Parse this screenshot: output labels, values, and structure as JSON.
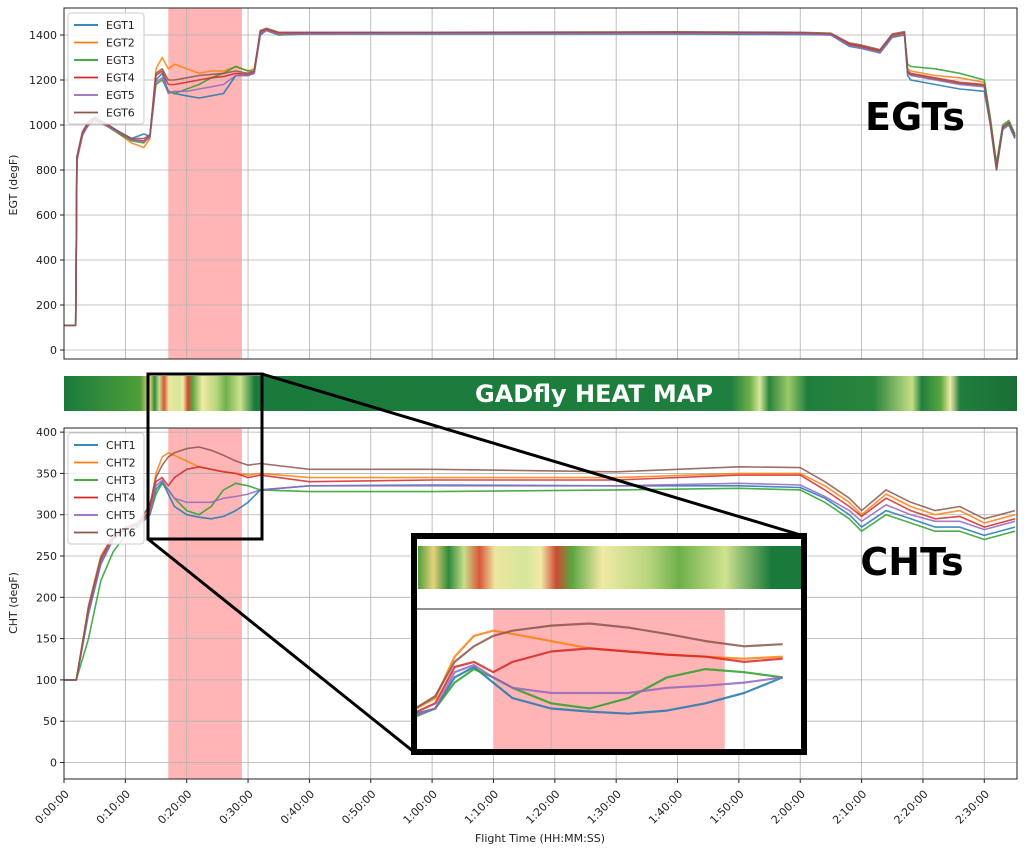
{
  "chart_data": [
    {
      "type": "line",
      "panel": "egt",
      "title": "",
      "annotation": "EGTs",
      "xlabel": "",
      "ylabel": "EGT (degF)",
      "ylim": [
        -40,
        1520
      ],
      "xlim": [
        0,
        9320
      ],
      "yticks": [
        0,
        200,
        400,
        600,
        800,
        1000,
        1200,
        1400
      ],
      "grid": true,
      "legend_position": "top-left",
      "highlight_band": [
        1020,
        1740
      ],
      "x_minutes": [
        0,
        1,
        1.9,
        2.1,
        3,
        4,
        5,
        7,
        9,
        11,
        13,
        14,
        15,
        16,
        17,
        18,
        20,
        22,
        24,
        26,
        28,
        30,
        31,
        32,
        33,
        35,
        40,
        60,
        100,
        120,
        125,
        128,
        130,
        133,
        135,
        137,
        137.5,
        138,
        142,
        146,
        150,
        151,
        152,
        153,
        154,
        155
      ],
      "series": [
        {
          "name": "EGT1",
          "color": "#1f77b4",
          "values": [
            110,
            110,
            110,
            850,
            960,
            1000,
            1020,
            1000,
            970,
            940,
            960,
            950,
            1200,
            1230,
            1150,
            1140,
            1130,
            1120,
            1130,
            1140,
            1220,
            1220,
            1230,
            1400,
            1420,
            1400,
            1405,
            1405,
            1405,
            1402,
            1400,
            1350,
            1340,
            1320,
            1390,
            1400,
            1220,
            1200,
            1180,
            1160,
            1150,
            1000,
            800,
            980,
            1000,
            940
          ]
        },
        {
          "name": "EGT2",
          "color": "#ff7f0e",
          "values": [
            110,
            110,
            110,
            840,
            950,
            1010,
            1030,
            1000,
            960,
            920,
            900,
            940,
            1250,
            1300,
            1250,
            1270,
            1250,
            1230,
            1240,
            1240,
            1260,
            1240,
            1250,
            1410,
            1425,
            1405,
            1408,
            1408,
            1410,
            1408,
            1400,
            1360,
            1350,
            1330,
            1395,
            1405,
            1250,
            1240,
            1220,
            1210,
            1190,
            1020,
            820,
            990,
            1010,
            950
          ]
        },
        {
          "name": "EGT3",
          "color": "#2ca02c",
          "values": [
            110,
            110,
            110,
            850,
            960,
            1005,
            1025,
            995,
            960,
            930,
            920,
            950,
            1180,
            1200,
            1150,
            1140,
            1160,
            1180,
            1210,
            1230,
            1260,
            1240,
            1240,
            1405,
            1420,
            1400,
            1406,
            1406,
            1407,
            1405,
            1400,
            1355,
            1345,
            1325,
            1392,
            1402,
            1270,
            1260,
            1250,
            1230,
            1200,
            1030,
            830,
            1000,
            1020,
            960
          ]
        },
        {
          "name": "EGT4",
          "color": "#d62728",
          "values": [
            110,
            110,
            110,
            855,
            965,
            1010,
            1030,
            1000,
            965,
            935,
            930,
            950,
            1220,
            1240,
            1180,
            1180,
            1190,
            1200,
            1210,
            1215,
            1230,
            1225,
            1235,
            1415,
            1425,
            1410,
            1410,
            1410,
            1412,
            1410,
            1405,
            1360,
            1350,
            1330,
            1400,
            1410,
            1240,
            1230,
            1210,
            1190,
            1180,
            1010,
            810,
            990,
            1010,
            950
          ]
        },
        {
          "name": "EGT5",
          "color": "#9467bd",
          "values": [
            110,
            110,
            110,
            845,
            955,
            1000,
            1020,
            995,
            965,
            935,
            925,
            945,
            1190,
            1210,
            1140,
            1150,
            1150,
            1160,
            1170,
            1180,
            1220,
            1220,
            1230,
            1405,
            1420,
            1402,
            1405,
            1406,
            1406,
            1404,
            1400,
            1352,
            1342,
            1322,
            1392,
            1402,
            1230,
            1220,
            1200,
            1180,
            1170,
            1000,
            800,
            985,
            1005,
            945
          ]
        },
        {
          "name": "EGT6",
          "color": "#8c564b",
          "values": [
            110,
            110,
            110,
            860,
            970,
            1015,
            1035,
            1005,
            970,
            940,
            940,
            955,
            1230,
            1250,
            1200,
            1200,
            1210,
            1220,
            1225,
            1230,
            1240,
            1230,
            1240,
            1420,
            1430,
            1412,
            1412,
            1412,
            1414,
            1412,
            1408,
            1365,
            1355,
            1335,
            1405,
            1415,
            1235,
            1225,
            1205,
            1185,
            1175,
            1005,
            805,
            990,
            1010,
            950
          ]
        }
      ]
    },
    {
      "type": "line",
      "panel": "cht",
      "title": "",
      "annotation": "CHTs",
      "xlabel": "Flight Time (HH:MM:SS)",
      "ylabel": "CHT (degF)",
      "ylim": [
        -20,
        405
      ],
      "xlim": [
        0,
        9320
      ],
      "yticks": [
        0,
        50,
        100,
        150,
        200,
        250,
        300,
        350,
        400
      ],
      "xtick_seconds": [
        0,
        600,
        1200,
        1800,
        2400,
        3000,
        3600,
        4200,
        4800,
        5400,
        6000,
        6600,
        7200,
        7800,
        8400,
        9000
      ],
      "xtick_labels": [
        "0:00:00",
        "0:10:00",
        "0:20:00",
        "0:30:00",
        "0:40:00",
        "0:50:00",
        "1:00:00",
        "1:10:00",
        "1:20:00",
        "1:30:00",
        "1:40:00",
        "1:50:00",
        "2:00:00",
        "2:10:00",
        "2:20:00",
        "2:30:00"
      ],
      "grid": true,
      "legend_position": "top-left",
      "highlight_band": [
        1020,
        1740
      ],
      "x_minutes": [
        0,
        1,
        2,
        4,
        6,
        8,
        10,
        12,
        14,
        15,
        16,
        17,
        18,
        20,
        22,
        24,
        26,
        28,
        30,
        32,
        40,
        60,
        90,
        110,
        120,
        124,
        128,
        130,
        134,
        138,
        142,
        146,
        150,
        155
      ],
      "series": [
        {
          "name": "CHT1",
          "color": "#1f77b4",
          "values": [
            100,
            100,
            100,
            180,
            240,
            270,
            285,
            290,
            300,
            330,
            340,
            325,
            310,
            300,
            297,
            295,
            298,
            305,
            315,
            330,
            335,
            336,
            335,
            335,
            333,
            320,
            300,
            285,
            305,
            295,
            285,
            285,
            275,
            285
          ]
        },
        {
          "name": "CHT2",
          "color": "#ff7f0e",
          "values": [
            100,
            100,
            100,
            190,
            250,
            275,
            285,
            290,
            310,
            350,
            370,
            375,
            372,
            365,
            358,
            355,
            352,
            350,
            348,
            350,
            345,
            345,
            345,
            350,
            350,
            335,
            315,
            300,
            325,
            310,
            300,
            305,
            290,
            300
          ]
        },
        {
          "name": "CHT3",
          "color": "#2ca02c",
          "values": [
            100,
            100,
            100,
            150,
            220,
            255,
            275,
            285,
            300,
            325,
            338,
            330,
            320,
            305,
            300,
            310,
            330,
            338,
            335,
            330,
            328,
            328,
            330,
            332,
            330,
            315,
            295,
            280,
            300,
            290,
            280,
            280,
            270,
            280
          ]
        },
        {
          "name": "CHT4",
          "color": "#d62728",
          "values": [
            100,
            100,
            100,
            185,
            245,
            272,
            283,
            288,
            305,
            340,
            345,
            335,
            345,
            355,
            358,
            355,
            352,
            350,
            345,
            348,
            340,
            342,
            342,
            348,
            348,
            330,
            310,
            298,
            320,
            305,
            295,
            298,
            285,
            295
          ]
        },
        {
          "name": "CHT5",
          "color": "#9467bd",
          "values": [
            100,
            100,
            100,
            182,
            242,
            270,
            282,
            287,
            300,
            335,
            342,
            330,
            320,
            315,
            315,
            315,
            320,
            322,
            325,
            330,
            335,
            335,
            335,
            338,
            336,
            322,
            305,
            292,
            312,
            300,
            292,
            292,
            282,
            292
          ]
        },
        {
          "name": "CHT6",
          "color": "#8c564b",
          "values": [
            100,
            100,
            100,
            188,
            248,
            274,
            284,
            289,
            312,
            345,
            360,
            370,
            375,
            380,
            382,
            378,
            372,
            365,
            360,
            362,
            355,
            355,
            352,
            358,
            357,
            340,
            320,
            305,
            330,
            315,
            305,
            310,
            295,
            305
          ]
        }
      ]
    }
  ],
  "heatmap": {
    "title": "GADfly HEAT MAP",
    "stops": [
      {
        "t": 0.0,
        "c": "#1a7a3c"
      },
      {
        "t": 0.08,
        "c": "#4f9e3a"
      },
      {
        "t": 0.09,
        "c": "#e8d27a"
      },
      {
        "t": 0.095,
        "c": "#2f8a3a"
      },
      {
        "t": 0.1,
        "c": "#c8df8a"
      },
      {
        "t": 0.105,
        "c": "#d9573a"
      },
      {
        "t": 0.11,
        "c": "#ede7a0"
      },
      {
        "t": 0.12,
        "c": "#d4e69a"
      },
      {
        "t": 0.125,
        "c": "#f2e9a8"
      },
      {
        "t": 0.13,
        "c": "#cc4a32"
      },
      {
        "t": 0.135,
        "c": "#5aa63f"
      },
      {
        "t": 0.145,
        "c": "#f0eaa5"
      },
      {
        "t": 0.16,
        "c": "#b7d67d"
      },
      {
        "t": 0.17,
        "c": "#6fb04a"
      },
      {
        "t": 0.185,
        "c": "#cfe38f"
      },
      {
        "t": 0.2,
        "c": "#1a7a3c"
      },
      {
        "t": 0.7,
        "c": "#1f7f3e"
      },
      {
        "t": 0.72,
        "c": "#6fb04a"
      },
      {
        "t": 0.73,
        "c": "#d7e89a"
      },
      {
        "t": 0.74,
        "c": "#2a853c"
      },
      {
        "t": 0.76,
        "c": "#9cc869"
      },
      {
        "t": 0.78,
        "c": "#1f7f3e"
      },
      {
        "t": 0.85,
        "c": "#2a853c"
      },
      {
        "t": 0.89,
        "c": "#c5df86"
      },
      {
        "t": 0.9,
        "c": "#1f7f3e"
      },
      {
        "t": 0.92,
        "c": "#5aa63f"
      },
      {
        "t": 0.93,
        "c": "#f0eaa5"
      },
      {
        "t": 0.94,
        "c": "#1f7f3e"
      },
      {
        "t": 1.0,
        "c": "#1a6e36"
      }
    ]
  }
}
